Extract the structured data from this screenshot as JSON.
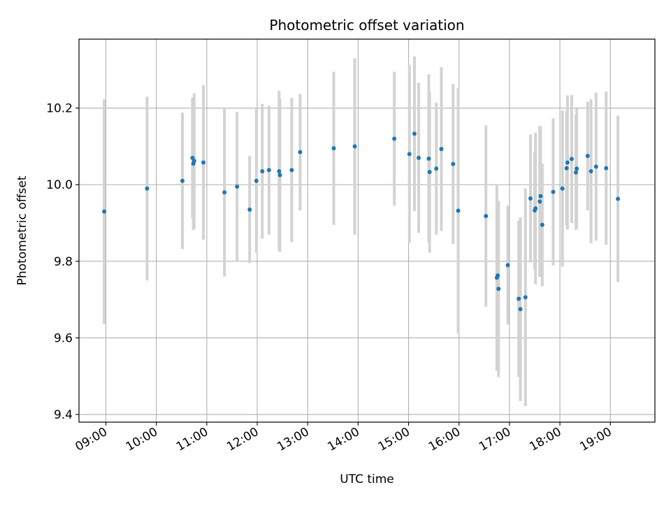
{
  "chart_data": {
    "type": "scatter",
    "title": "Photometric offset variation",
    "xlabel": "UTC time",
    "ylabel": "Photometric offset",
    "x_unit": "hours UTC",
    "xlim": [
      "08:28",
      "19:53"
    ],
    "ylim": [
      9.38,
      10.38
    ],
    "xticks": [
      "09:00",
      "10:00",
      "11:00",
      "12:00",
      "13:00",
      "14:00",
      "15:00",
      "16:00",
      "17:00",
      "18:00",
      "19:00"
    ],
    "yticks": [
      9.4,
      9.6,
      9.8,
      10.0,
      10.2
    ],
    "yticklabels": [
      "9.4",
      "9.6",
      "9.8",
      "10.0",
      "10.2"
    ],
    "grid": true,
    "marker_color": "#1f77b4",
    "errorbar_color": "#d3d3d3",
    "series": [
      {
        "x": [
          "08:58",
          "09:49",
          "10:31",
          "10:43",
          "10:44",
          "10:45",
          "10:56",
          "11:21",
          "11:36",
          "11:51",
          "11:59",
          "12:06",
          "12:14",
          "12:26",
          "12:27",
          "12:41",
          "12:51",
          "13:31",
          "13:56",
          "14:43",
          "15:01",
          "15:07",
          "15:12",
          "15:24",
          "15:25",
          "15:33",
          "15:39",
          "15:53",
          "15:59",
          "16:32",
          "16:45",
          "16:46",
          "16:47",
          "16:58",
          "17:11",
          "17:13",
          "17:19",
          "17:25",
          "17:30",
          "17:31",
          "17:36",
          "17:37",
          "17:39",
          "17:52",
          "18:03",
          "18:08",
          "18:09",
          "18:14",
          "18:19",
          "18:20",
          "18:33",
          "18:37",
          "18:43",
          "18:55",
          "19:09"
        ],
        "y": [
          9.93,
          9.99,
          10.01,
          10.07,
          10.055,
          10.062,
          10.058,
          9.98,
          9.995,
          9.935,
          10.01,
          10.035,
          10.038,
          10.035,
          10.025,
          10.038,
          10.085,
          10.095,
          10.1,
          10.12,
          10.08,
          10.133,
          10.07,
          10.068,
          10.033,
          10.042,
          10.093,
          10.054,
          9.932,
          9.918,
          9.757,
          9.763,
          9.728,
          9.79,
          9.702,
          9.675,
          9.706,
          9.964,
          9.933,
          9.938,
          9.956,
          9.97,
          9.895,
          9.981,
          9.99,
          10.043,
          10.058,
          10.067,
          10.032,
          10.042,
          10.075,
          10.035,
          10.047,
          10.043,
          9.963
        ],
        "yerr": [
          0.293,
          0.24,
          0.178,
          0.157,
          0.173,
          0.177,
          0.202,
          0.22,
          0.195,
          0.14,
          0.188,
          0.176,
          0.168,
          0.21,
          0.2,
          0.188,
          0.152,
          0.2,
          0.23,
          0.175,
          0.232,
          0.202,
          0.196,
          0.22,
          0.21,
          0.172,
          0.214,
          0.209,
          0.32,
          0.237,
          0.243,
          0.192,
          0.23,
          0.155,
          0.204,
          0.24,
          0.284,
          0.167,
          0.153,
          0.198,
          0.197,
          0.183,
          0.16,
          0.192,
          0.204,
          0.15,
          0.175,
          0.167,
          0.15,
          0.157,
          0.142,
          0.188,
          0.193,
          0.2,
          0.217
        ]
      }
    ]
  }
}
